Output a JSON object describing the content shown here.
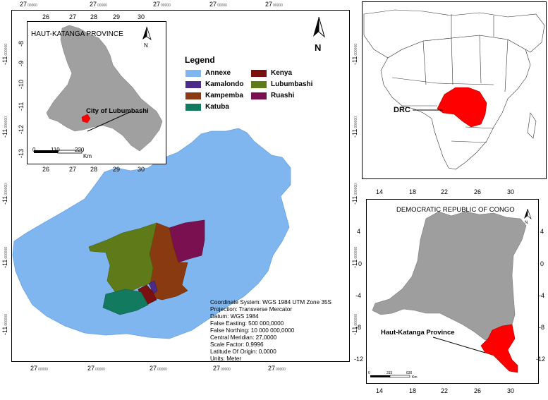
{
  "main_map": {
    "x_ticks": [
      {
        "deg": "27",
        "sup": "00000"
      },
      {
        "deg": "27",
        "sup": "00000"
      },
      {
        "deg": "27",
        "sup": "00000"
      },
      {
        "deg": "27",
        "sup": "00000"
      },
      {
        "deg": "27",
        "sup": "00000"
      }
    ],
    "y_ticks": [
      {
        "deg": "-11",
        "sup": "000000"
      },
      {
        "deg": "-11",
        "sup": "000000"
      },
      {
        "deg": "-11",
        "sup": "000000"
      },
      {
        "deg": "-11",
        "sup": "000000"
      },
      {
        "deg": "-11",
        "sup": "000000"
      }
    ],
    "north_label": "N",
    "colors": {
      "annexe": "#7fb6ef",
      "kamalondo": "#4b2a8a",
      "kampemba": "#8a3a10",
      "katuba": "#127a5f",
      "kenya": "#7a1010",
      "lubumbashi": "#5f7a18",
      "ruashi": "#7a1050"
    },
    "info_lines": [
      "Coordinate System: WGS 1984 UTM Zone 35S",
      "Projection: Transverse Mercator",
      "Datum: WGS 1984",
      "False Easting: 500 000,0000",
      "False Northing: 10 000 000,0000",
      "Central Meridian: 27,0000",
      "Scale Factor: 0,9996",
      "Latitude Of Origin: 0,0000",
      "Units: Meter"
    ]
  },
  "legend": {
    "title": "Legend",
    "items": [
      {
        "label": "Annexe",
        "color": "#7fb6ef"
      },
      {
        "label": "Kamalondo",
        "color": "#4b2a8a"
      },
      {
        "label": "Kampemba",
        "color": "#8a3a10"
      },
      {
        "label": "Katuba",
        "color": "#127a5f"
      },
      {
        "label": "Kenya",
        "color": "#7a1010"
      },
      {
        "label": "Lubumbashi",
        "color": "#5f7a18"
      },
      {
        "label": "Ruashi",
        "color": "#7a1050"
      }
    ]
  },
  "inset_haut_katanga": {
    "title": "HAUT-KATANGA PROVINCE",
    "north_label": "N",
    "x_ticks": [
      "26",
      "27",
      "28",
      "29",
      "30"
    ],
    "y_ticks": [
      "-8",
      "-9",
      "-10",
      "-11",
      "-12",
      "-13"
    ],
    "city_label": "City of Lubumbashi",
    "scale": {
      "labels": [
        "0",
        "110",
        "220"
      ],
      "unit": "Km"
    },
    "colors": {
      "province": "#a0a0a0",
      "city": "#ff0000"
    }
  },
  "inset_africa": {
    "label": "DRC",
    "colors": {
      "drc": "#ff0000",
      "land": "#ffffff",
      "border": "#333333"
    }
  },
  "inset_drc": {
    "title": "DEMOCRATIC REPUBLIC OF CONGO",
    "north_label": "N",
    "x_ticks": [
      "14",
      "18",
      "22",
      "26",
      "30"
    ],
    "y_ticks": [
      "4",
      "0",
      "-4",
      "-8",
      "-12"
    ],
    "province_label": "Haut-Katanga Province",
    "scale": {
      "labels": [
        "0",
        "315",
        "630"
      ],
      "unit": "Km"
    },
    "colors": {
      "drc": "#9e9e9e",
      "province": "#ff0000"
    }
  }
}
